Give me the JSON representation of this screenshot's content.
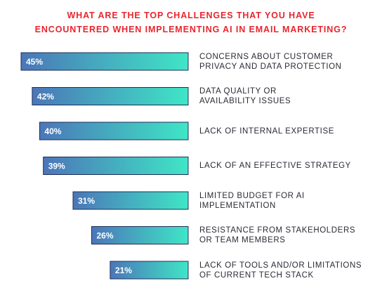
{
  "chart_data": {
    "type": "bar",
    "orientation": "horizontal",
    "title": "WHAT ARE THE TOP CHALLENGES THAT YOU HAVE ENCOUNTERED WHEN IMPLEMENTING AI IN EMAIL MARKETING?",
    "title_lines": [
      "WHAT ARE THE TOP CHALLENGES THAT YOU HAVE",
      "ENCOUNTERED WHEN IMPLEMENTING AI IN EMAIL MARKETING?"
    ],
    "categories": [
      [
        "CONCERNS ABOUT CUSTOMER",
        "PRIVACY AND DATA PROTECTION"
      ],
      [
        "DATA QUALITY OR",
        "AVAILABILITY ISSUES"
      ],
      [
        "LACK OF INTERNAL EXPERTISE"
      ],
      [
        "LACK OF AN EFFECTIVE STRATEGY"
      ],
      [
        "LIMITED BUDGET FOR AI",
        "IMPLEMENTATION"
      ],
      [
        "RESISTANCE FROM STAKEHOLDERS",
        "OR TEAM MEMBERS"
      ],
      [
        "LACK OF TOOLS AND/OR LIMITATIONS",
        "OF CURRENT TECH STACK"
      ]
    ],
    "values": [
      45,
      42,
      40,
      39,
      31,
      26,
      21
    ],
    "value_labels": [
      "45%",
      "42%",
      "40%",
      "39%",
      "31%",
      "26%",
      "21%"
    ],
    "unit": "%",
    "xlim": [
      0,
      45
    ],
    "grid": false,
    "legend": "none"
  },
  "colors": {
    "title": "#e8252e",
    "bar_gradient_start": "#4b76b8",
    "bar_gradient_end": "#3fe6c6",
    "bar_outline": "#1f2d5a",
    "value_label": "#ffffff",
    "category_text": "#2a2a35"
  }
}
